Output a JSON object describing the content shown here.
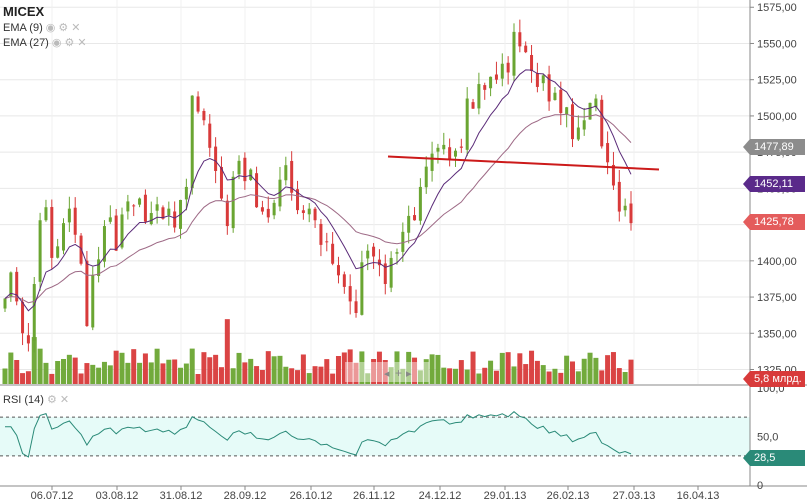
{
  "legend": {
    "title": "MICEX",
    "ema_fast": "EMA (9)",
    "ema_slow": "EMA (27)",
    "rsi": "RSI (14)"
  },
  "colors": {
    "up": "#6aa532",
    "down": "#d83a3a",
    "ema_fast": "#5a2a78",
    "ema_slow": "#9e6a86",
    "trendline": "#cc1a1a",
    "rsi_line": "#2a8a78",
    "rsi_band": "#e6fbf8",
    "label_gray": "#8c8c8c",
    "label_purple": "#5a2a8a",
    "label_red": "#e45c5c"
  },
  "price_labels": {
    "gray": "1477,89",
    "purple": "1452,11",
    "red": "1425,78"
  },
  "volume_label": "5,8 млрд.",
  "rsi_label": "28,5",
  "chart_data": {
    "type": "candlestick",
    "title": "MICEX",
    "x_ticks": [
      "06.07.12",
      "03.08.12",
      "31.08.12",
      "28.09.12",
      "26.10.12",
      "26.11.12",
      "24.12.12",
      "29.01.13",
      "26.02.13",
      "27.03.13",
      "16.04.13"
    ],
    "y_ticks": [
      "1575,00",
      "1550,00",
      "1525,00",
      "1500,00",
      "1475,00",
      "1450,00",
      "1425,00",
      "1400,00",
      "1375,00",
      "1350,00",
      "1325,00"
    ],
    "ylim": [
      1315,
      1580
    ],
    "rsi_ticks": [
      "100,0",
      "50,0",
      "0"
    ],
    "rsi_ylim": [
      0,
      100
    ],
    "rsi_levels": [
      70,
      30
    ],
    "closes": [
      1374,
      1392,
      1372,
      1350,
      1343,
      1384,
      1428,
      1437,
      1402,
      1410,
      1426,
      1436,
      1418,
      1398,
      1355,
      1390,
      1401,
      1424,
      1430,
      1407,
      1432,
      1441,
      1438,
      1443,
      1427,
      1433,
      1439,
      1429,
      1436,
      1423,
      1442,
      1451,
      1514,
      1503,
      1497,
      1478,
      1462,
      1443,
      1424,
      1458,
      1469,
      1455,
      1463,
      1437,
      1434,
      1430,
      1440,
      1456,
      1466,
      1447,
      1435,
      1433,
      1436,
      1428,
      1411,
      1413,
      1398,
      1390,
      1382,
      1372,
      1364,
      1399,
      1407,
      1403,
      1397,
      1384,
      1402,
      1406,
      1420,
      1431,
      1428,
      1451,
      1465,
      1474,
      1478,
      1480,
      1470,
      1476,
      1478,
      1512,
      1505,
      1522,
      1518,
      1527,
      1525,
      1536,
      1530,
      1558,
      1548,
      1544,
      1531,
      1520,
      1528,
      1510,
      1516,
      1502,
      1506,
      1484,
      1492,
      1497,
      1509,
      1512,
      1479,
      1468,
      1452,
      1434,
      1438,
      1426
    ],
    "trendline": [
      [
        "26.11.12",
        1472
      ],
      [
        "16.04.13",
        1463
      ]
    ],
    "series": [
      {
        "name": "EMA (9)"
      },
      {
        "name": "EMA (27)"
      },
      {
        "name": "RSI (14)"
      }
    ]
  }
}
